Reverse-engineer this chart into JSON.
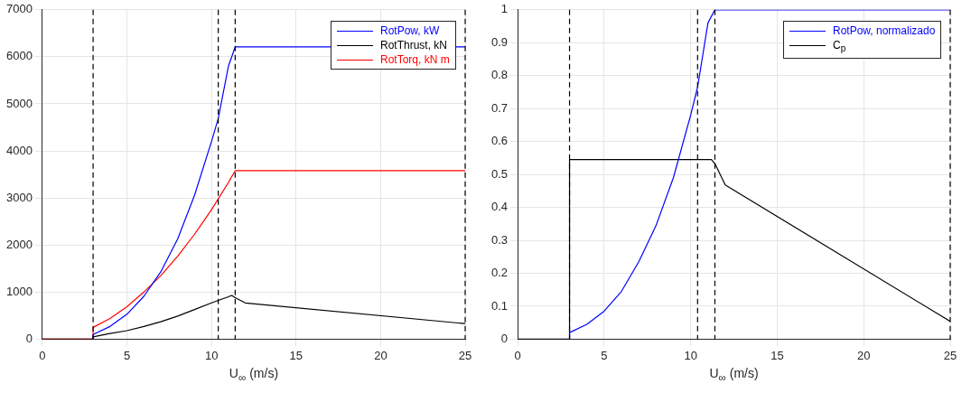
{
  "chart_data": [
    {
      "type": "line",
      "xlabel": "U$_{∞}$ (m/s)",
      "xlim": [
        0,
        25
      ],
      "xticks": [
        0,
        5,
        10,
        15,
        20,
        25
      ],
      "ylim": [
        0,
        7000
      ],
      "yticks": [
        0,
        1000,
        2000,
        3000,
        4000,
        5000,
        6000,
        7000
      ],
      "grid": true,
      "legend": "top right",
      "marker": "none",
      "line_style": "solid",
      "series": [
        {
          "name": "RotPow, kW",
          "color": "#0000ff",
          "x": [
            3,
            3,
            4,
            5,
            6,
            7,
            8,
            9,
            10,
            10.4,
            11,
            11.4,
            25
          ],
          "values": [
            0,
            100,
            270,
            530,
            910,
            1430,
            2130,
            3060,
            4200,
            4690,
            5800,
            6210,
            6210
          ]
        },
        {
          "name": "RotThrust, kN",
          "color": "#000000",
          "x": [
            0,
            3,
            3,
            4,
            5,
            6,
            7,
            8,
            9,
            10,
            11,
            11.2,
            11.4,
            12,
            25
          ],
          "values": [
            0,
            0,
            50,
            120,
            180,
            270,
            370,
            490,
            630,
            770,
            900,
            930,
            880,
            770,
            330
          ]
        },
        {
          "name": "RotTorq, kN m",
          "color": "#ff0000",
          "x": [
            0,
            3,
            3,
            4,
            5,
            6,
            7,
            8,
            9,
            10,
            10.4,
            11,
            11.4,
            25
          ],
          "values": [
            0,
            0,
            250,
            440,
            690,
            1000,
            1350,
            1760,
            2230,
            2750,
            2980,
            3330,
            3580,
            3580
          ]
        }
      ],
      "ref_lines": [
        {
          "axis": "x",
          "value": 3,
          "color": "#000000",
          "line_style": "dashed"
        },
        {
          "axis": "x",
          "value": 10.4,
          "color": "#000000",
          "line_style": "dashed"
        },
        {
          "axis": "x",
          "value": 11.4,
          "color": "#000000",
          "line_style": "dashed"
        },
        {
          "axis": "x",
          "value": 25,
          "color": "#000000",
          "line_style": "dashed"
        }
      ]
    },
    {
      "type": "line",
      "xlabel": "U$_{∞}$ (m/s)",
      "xlim": [
        0,
        25
      ],
      "xticks": [
        0,
        5,
        10,
        15,
        20,
        25
      ],
      "ylim": [
        0,
        1
      ],
      "yticks": [
        0,
        0.1,
        0.2,
        0.3,
        0.4,
        0.5,
        0.6,
        0.7,
        0.8,
        0.9,
        1
      ],
      "grid": true,
      "legend": "top right",
      "marker": "none",
      "line_style": "solid",
      "series": [
        {
          "name": "RotPow, normalizado",
          "color": "#0000ff",
          "x": [
            3,
            3,
            4,
            5,
            6,
            7,
            8,
            9,
            10,
            10.4,
            11,
            11.4,
            25
          ],
          "values": [
            0,
            0.02,
            0.045,
            0.085,
            0.145,
            0.235,
            0.345,
            0.49,
            0.68,
            0.765,
            0.96,
            1,
            1
          ]
        },
        {
          "name": "C$_{p}$",
          "color": "#000000",
          "x": [
            0,
            3,
            3,
            11.2,
            11.4,
            12,
            25
          ],
          "values": [
            0,
            0,
            0.545,
            0.545,
            0.533,
            0.468,
            0.054
          ]
        }
      ],
      "ref_lines": [
        {
          "axis": "x",
          "value": 3,
          "color": "#000000",
          "line_style": "dashed"
        },
        {
          "axis": "x",
          "value": 10.4,
          "color": "#000000",
          "line_style": "dashed"
        },
        {
          "axis": "x",
          "value": 11.4,
          "color": "#000000",
          "line_style": "dashed"
        },
        {
          "axis": "x",
          "value": 25,
          "color": "#000000",
          "line_style": "dashed"
        }
      ]
    }
  ]
}
